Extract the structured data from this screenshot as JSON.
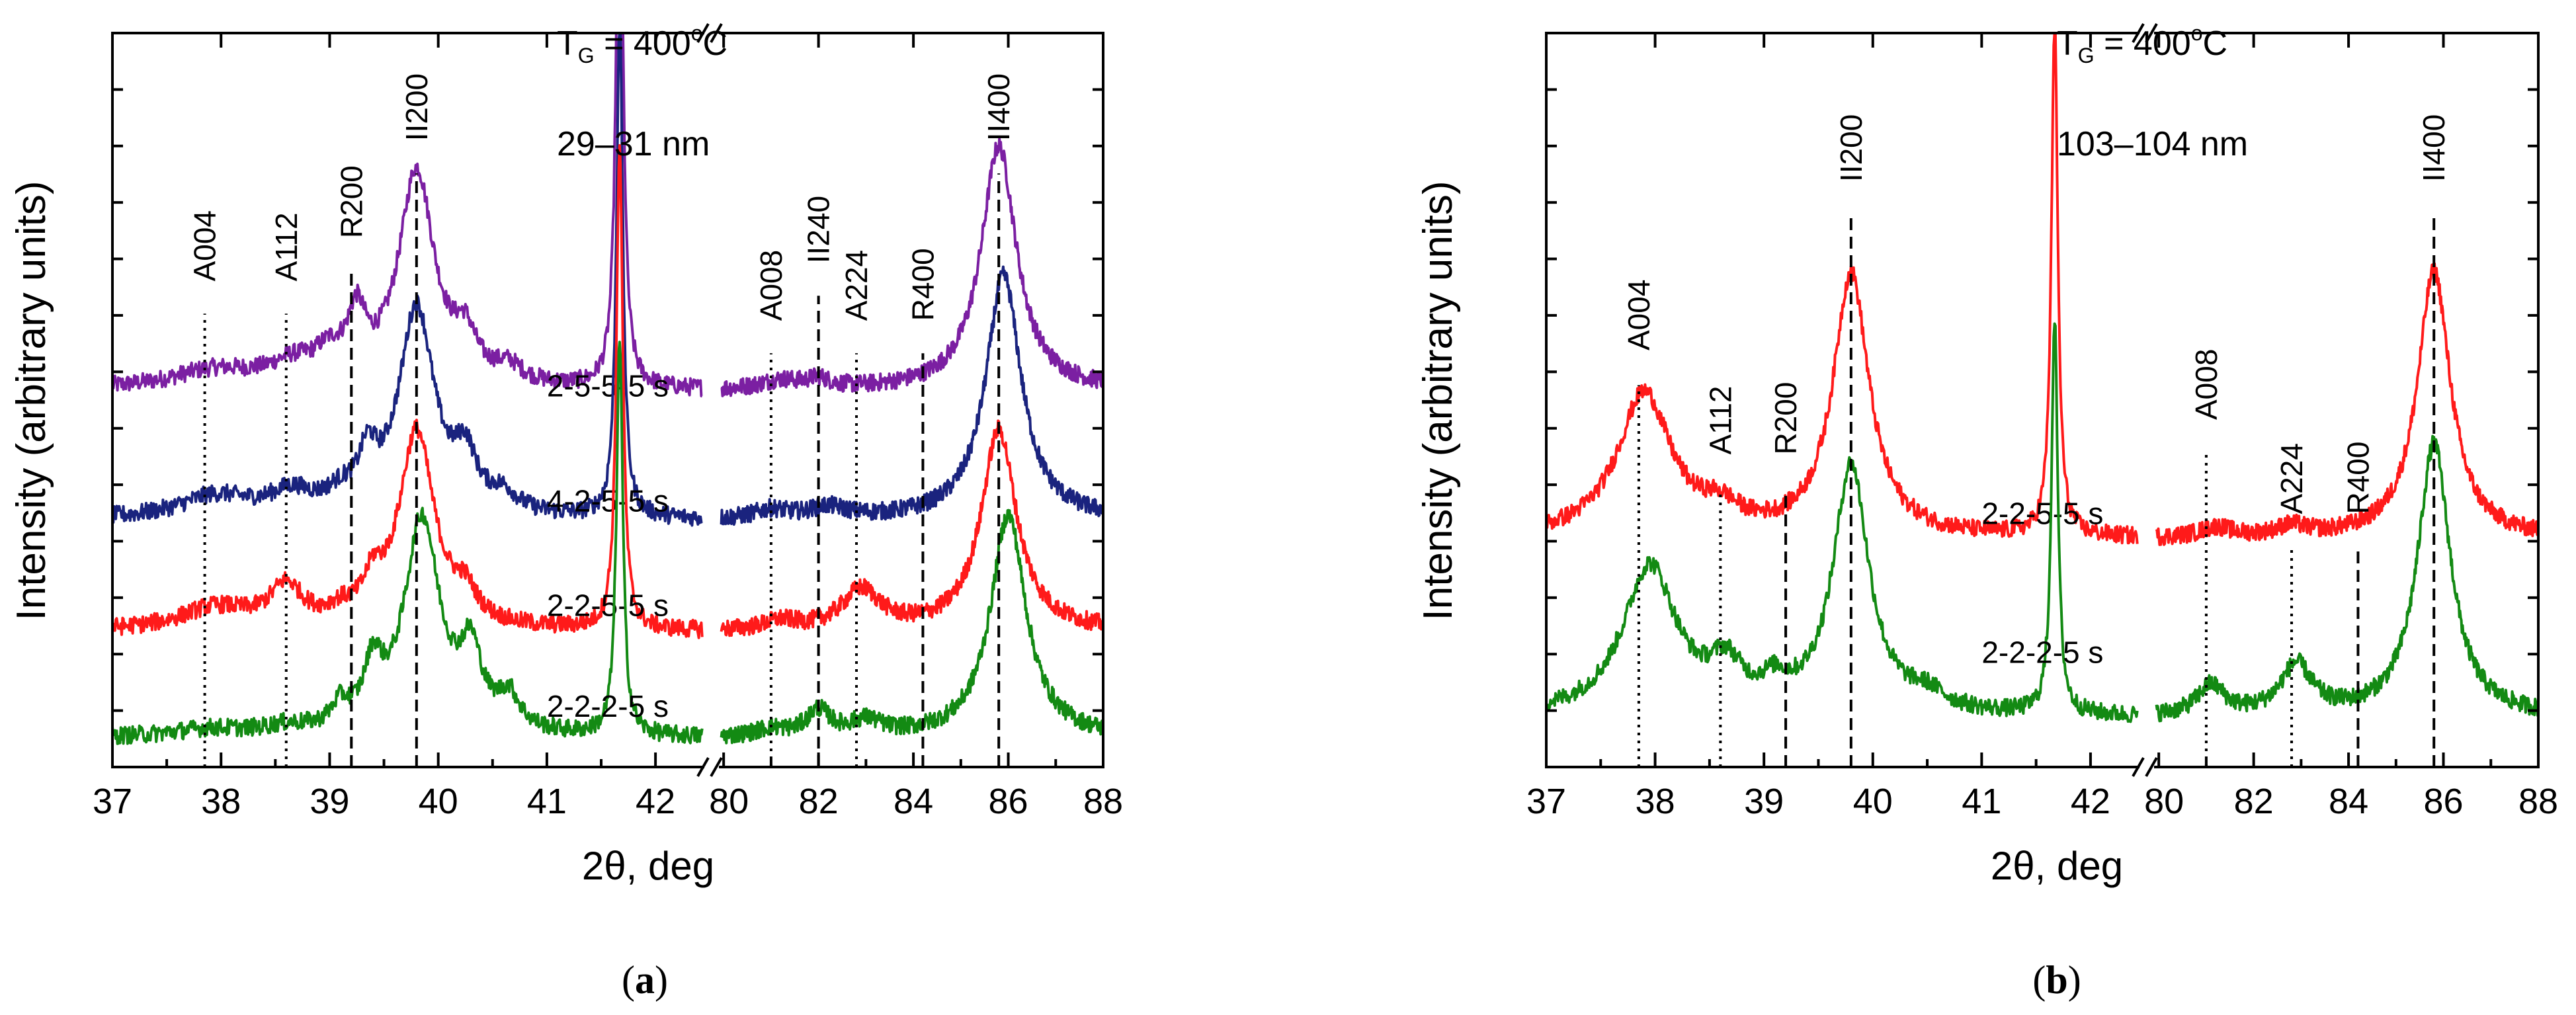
{
  "chart_data": [
    {
      "type": "line",
      "panel_label": "(a)",
      "panel_letter": "a",
      "xlabel": "2θ, deg",
      "ylabel": "Intensity (arbitrary units)",
      "ylim": [
        0,
        10.2
      ],
      "x_left_range": [
        37,
        42.45
      ],
      "x_right_range": [
        79.9,
        88
      ],
      "x_left_ticks": [
        "37",
        "38",
        "39",
        "40",
        "41",
        "42"
      ],
      "x_right_ticks": [
        "80",
        "82",
        "84",
        "86",
        "88"
      ],
      "annotation_tg": "T",
      "annotation_tg_sub": "G",
      "annotation_tg_value": " = 400",
      "annotation_tg_deg": "o",
      "annotation_tg_unit": "C",
      "annotation_thickness": "29–31 nm",
      "series": [
        {
          "name": "2-5-5-5 s",
          "color": "#7b1fa2",
          "offset": 4.95,
          "base": 0.28,
          "label_at": [
            41.0,
            5.15
          ],
          "peaks_left": [
            [
              37.95,
              0.25,
              0.5
            ],
            [
              38.65,
              0.25,
              0.25
            ],
            [
              39.0,
              0.35,
              0.18
            ],
            [
              39.25,
              0.8,
              0.1
            ],
            [
              39.8,
              3.0,
              0.2
            ],
            [
              40.25,
              0.55,
              0.12
            ],
            [
              40.65,
              0.22,
              0.15
            ],
            [
              41.67,
              9.0,
              0.035
            ]
          ],
          "peaks_right": [
            [
              81.2,
              0.12,
              0.5
            ],
            [
              82.0,
              0.12,
              0.3
            ],
            [
              85.8,
              3.4,
              0.45
            ]
          ]
        },
        {
          "name": "4-2-5-5 s",
          "color": "#1a237e",
          "offset": 3.15,
          "base": 0.28,
          "label_at": [
            41.0,
            3.55
          ],
          "peaks_left": [
            [
              37.95,
              0.3,
              0.4
            ],
            [
              38.65,
              0.3,
              0.25
            ],
            [
              39.1,
              0.2,
              0.15
            ],
            [
              39.35,
              0.65,
              0.1
            ],
            [
              39.8,
              2.9,
              0.2
            ],
            [
              40.25,
              0.7,
              0.12
            ],
            [
              40.6,
              0.25,
              0.15
            ],
            [
              41.67,
              7.0,
              0.035
            ]
          ],
          "peaks_right": [
            [
              81.0,
              0.12,
              0.4
            ],
            [
              82.2,
              0.15,
              0.5
            ],
            [
              85.9,
              3.4,
              0.45
            ]
          ]
        },
        {
          "name": "2-2-5-5 s",
          "color": "#ff1a1a",
          "offset": 1.6,
          "base": 0.28,
          "label_at": [
            41.0,
            2.1
          ],
          "peaks_left": [
            [
              37.95,
              0.3,
              0.4
            ],
            [
              38.6,
              0.55,
              0.18
            ],
            [
              39.1,
              0.15,
              0.15
            ],
            [
              39.4,
              0.45,
              0.1
            ],
            [
              39.8,
              2.75,
              0.2
            ],
            [
              40.25,
              0.35,
              0.12
            ],
            [
              41.67,
              6.8,
              0.035
            ]
          ],
          "peaks_right": [
            [
              81.2,
              0.12,
              0.4
            ],
            [
              82.9,
              0.55,
              0.5
            ],
            [
              85.8,
              2.8,
              0.45
            ]
          ]
        },
        {
          "name": "2-2-2-5 s",
          "color": "#138a13",
          "offset": 0.15,
          "base": 0.25,
          "label_at": [
            41.0,
            0.7
          ],
          "peaks_left": [
            [
              37.9,
              0.1,
              0.4
            ],
            [
              38.6,
              0.1,
              0.25
            ],
            [
              39.1,
              0.3,
              0.1
            ],
            [
              39.4,
              0.8,
              0.1
            ],
            [
              39.85,
              3.0,
              0.2
            ],
            [
              40.3,
              1.0,
              0.12
            ],
            [
              40.65,
              0.45,
              0.12
            ],
            [
              41.67,
              5.5,
              0.035
            ]
          ],
          "peaks_right": [
            [
              81.0,
              0.1,
              0.4
            ],
            [
              82.0,
              0.35,
              0.3
            ],
            [
              83.0,
              0.2,
              0.4
            ],
            [
              86.0,
              3.1,
              0.45
            ]
          ]
        }
      ],
      "markers": [
        {
          "label": "A004",
          "axis": "L",
          "x": 37.85,
          "style": "dotted",
          "label_y": 6.75,
          "y_top": 6.3
        },
        {
          "label": "A112",
          "axis": "L",
          "x": 38.6,
          "style": "dotted",
          "label_y": 6.75,
          "y_top": 6.3
        },
        {
          "label": "R200",
          "axis": "L",
          "x": 39.2,
          "style": "dashed",
          "label_y": 7.35,
          "y_top": 6.9
        },
        {
          "label": "II200",
          "axis": "L",
          "x": 39.8,
          "style": "dashed",
          "label_y": 8.7,
          "y_top": 8.25
        },
        {
          "label": "A008",
          "axis": "R",
          "x": 81.0,
          "style": "dotted",
          "label_y": 6.2,
          "y_top": 5.75
        },
        {
          "label": "II240",
          "axis": "R",
          "x": 82.0,
          "style": "dashed",
          "label_y": 7.0,
          "y_top": 6.55
        },
        {
          "label": "A224",
          "axis": "R",
          "x": 82.8,
          "style": "dotted",
          "label_y": 6.2,
          "y_top": 5.75
        },
        {
          "label": "R400",
          "axis": "R",
          "x": 84.2,
          "style": "dashed",
          "label_y": 6.2,
          "y_top": 5.75
        },
        {
          "label": "II400",
          "axis": "R",
          "x": 85.8,
          "style": "dashed",
          "label_y": 8.7,
          "y_top": 8.25
        }
      ]
    },
    {
      "type": "line",
      "panel_label": "(b)",
      "panel_letter": "b",
      "xlabel": "2θ, deg",
      "ylabel": "Intensity (arbitrary units)",
      "ylim": [
        0,
        7.4
      ],
      "x_left_range": [
        37,
        42.45
      ],
      "x_right_range": [
        79.9,
        88
      ],
      "x_left_ticks": [
        "37",
        "38",
        "39",
        "40",
        "41",
        "42"
      ],
      "x_right_ticks": [
        "80",
        "82",
        "84",
        "86",
        "88"
      ],
      "annotation_tg": "T",
      "annotation_tg_sub": "G",
      "annotation_tg_value": " = 400",
      "annotation_tg_deg": "o",
      "annotation_tg_unit": "C",
      "annotation_thickness": "103–104 nm",
      "series": [
        {
          "name": "2-2-5-5 s",
          "color": "#ff1a1a",
          "offset": 2.0,
          "base": 0.3,
          "label_at": [
            41.0,
            2.45
          ],
          "peaks_left": [
            [
              37.9,
              1.45,
              0.3
            ],
            [
              38.6,
              0.2,
              0.2
            ],
            [
              39.8,
              2.65,
              0.2
            ],
            [
              41.67,
              5.25,
              0.035
            ]
          ],
          "peaks_right": [
            [
              81.2,
              0.1,
              0.4
            ],
            [
              82.8,
              0.1,
              0.4
            ],
            [
              85.8,
              2.7,
              0.42
            ]
          ]
        },
        {
          "name": "2-2-2-5 s",
          "color": "#138a13",
          "offset": 0.3,
          "base": 0.2,
          "label_at": [
            41.0,
            1.05
          ],
          "peaks_left": [
            [
              37.95,
              1.5,
              0.3
            ],
            [
              38.65,
              0.4,
              0.18
            ],
            [
              39.1,
              0.2,
              0.15
            ],
            [
              39.8,
              2.5,
              0.2
            ],
            [
              40.5,
              0.15,
              0.2
            ],
            [
              41.67,
              4.0,
              0.035
            ]
          ],
          "peaks_right": [
            [
              81.1,
              0.3,
              0.35
            ],
            [
              82.9,
              0.5,
              0.4
            ],
            [
              85.8,
              2.75,
              0.42
            ]
          ]
        }
      ],
      "markers": [
        {
          "label": "A004",
          "axis": "L",
          "x": 37.85,
          "style": "dotted",
          "label_y": 4.2,
          "y_top": 3.85
        },
        {
          "label": "A112",
          "axis": "L",
          "x": 38.6,
          "style": "dotted",
          "label_y": 3.15,
          "y_top": 2.8
        },
        {
          "label": "R200",
          "axis": "L",
          "x": 39.2,
          "style": "dashed",
          "label_y": 3.15,
          "y_top": 2.8
        },
        {
          "label": "II200",
          "axis": "L",
          "x": 39.8,
          "style": "dashed",
          "label_y": 5.9,
          "y_top": 5.55
        },
        {
          "label": "A008",
          "axis": "R",
          "x": 81.0,
          "style": "dotted",
          "label_y": 3.5,
          "y_top": 3.15
        },
        {
          "label": "A224",
          "axis": "R",
          "x": 82.8,
          "style": "dotted",
          "label_y": 2.55,
          "y_top": 2.2
        },
        {
          "label": "R400",
          "axis": "R",
          "x": 84.2,
          "style": "dashed",
          "label_y": 2.55,
          "y_top": 2.2
        },
        {
          "label": "II400",
          "axis": "R",
          "x": 85.8,
          "style": "dashed",
          "label_y": 5.9,
          "y_top": 5.55
        }
      ]
    }
  ]
}
